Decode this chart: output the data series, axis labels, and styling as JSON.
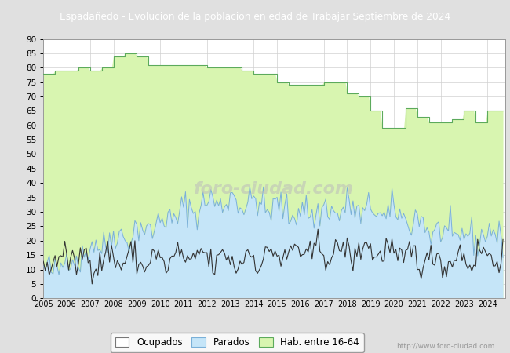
{
  "title": "Espadañedo - Evolucion de la poblacion en edad de Trabajar Septiembre de 2024",
  "title_bg": "#4a7abf",
  "title_color": "white",
  "ylim": [
    0,
    90
  ],
  "yticks": [
    0,
    5,
    10,
    15,
    20,
    25,
    30,
    35,
    40,
    45,
    50,
    55,
    60,
    65,
    70,
    75,
    80,
    85,
    90
  ],
  "color_hab": "#d8f5b0",
  "color_hab_line": "#5caa5c",
  "color_parados_fill": "#c5e5f8",
  "color_parados_line": "#7ab0d8",
  "color_ocupados": "#333333",
  "color_grid": "#d0d0d0",
  "outer_bg": "#e0e0e0",
  "watermark_text": "foro-ciudad.com",
  "watermark_full": "http://www.foro-ciudad.com",
  "legend_labels": [
    "Ocupados",
    "Parados",
    "Hab. entre 16-64"
  ]
}
